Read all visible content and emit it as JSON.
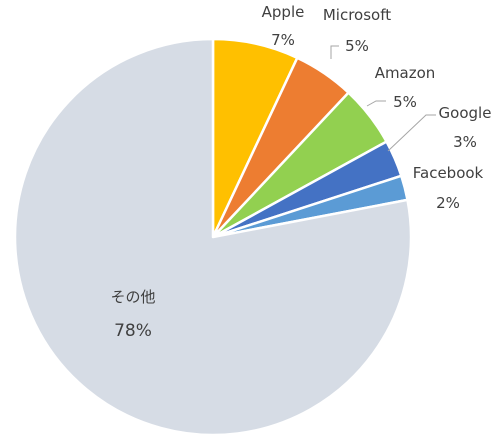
{
  "chart_data": {
    "type": "pie",
    "title": "",
    "slices": [
      {
        "label": "Apple",
        "value": 7,
        "display": "7%",
        "color": "#FFC000"
      },
      {
        "label": "Microsoft",
        "value": 5,
        "display": "5%",
        "color": "#ED7D31"
      },
      {
        "label": "Amazon",
        "value": 5,
        "display": "5%",
        "color": "#92D050"
      },
      {
        "label": "Google",
        "value": 3,
        "display": "3%",
        "color": "#4472C4"
      },
      {
        "label": "Facebook",
        "value": 2,
        "display": "2%",
        "color": "#5B9BD5"
      },
      {
        "label": "その他",
        "value": 78,
        "display": "78%",
        "color": "#D6DCE5"
      }
    ],
    "start_angle_deg": 0,
    "direction": "clockwise",
    "slice_border_color": "#FFFFFF",
    "leader_line_color": "#A6A6A6",
    "label_color": "#404040"
  }
}
